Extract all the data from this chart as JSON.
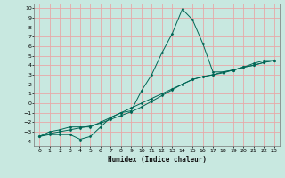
{
  "xlabel": "Humidex (Indice chaleur)",
  "xlim": [
    -0.5,
    23.5
  ],
  "ylim": [
    -4.5,
    10.5
  ],
  "xticks": [
    0,
    1,
    2,
    3,
    4,
    5,
    6,
    7,
    8,
    9,
    10,
    11,
    12,
    13,
    14,
    15,
    16,
    17,
    18,
    19,
    20,
    21,
    22,
    23
  ],
  "yticks": [
    -4,
    -3,
    -2,
    -1,
    0,
    1,
    2,
    3,
    4,
    5,
    6,
    7,
    8,
    9,
    10
  ],
  "bg_color": "#c8e8e0",
  "grid_color": "#e8a8a8",
  "line_color": "#006655",
  "curve1_x": [
    0,
    1,
    2,
    3,
    4,
    5,
    6,
    7,
    8,
    9,
    10,
    11,
    12,
    13,
    14,
    15,
    16,
    17,
    18,
    19,
    20,
    21,
    22,
    23
  ],
  "curve1_y": [
    -3.5,
    -3.3,
    -3.3,
    -3.3,
    -3.8,
    -3.5,
    -2.5,
    -1.5,
    -1.0,
    -0.8,
    1.3,
    3.0,
    5.3,
    7.3,
    9.9,
    8.8,
    6.3,
    3.3,
    3.3,
    3.5,
    3.8,
    4.2,
    4.5,
    4.5
  ],
  "curve2_x": [
    0,
    1,
    2,
    3,
    4,
    5,
    6,
    7,
    8,
    9,
    10,
    11,
    12,
    13,
    14,
    15,
    16,
    17,
    18,
    19,
    20,
    21,
    22,
    23
  ],
  "curve2_y": [
    -3.5,
    -3.0,
    -2.8,
    -2.5,
    -2.5,
    -2.5,
    -2.0,
    -1.5,
    -1.0,
    -0.5,
    0.0,
    0.5,
    1.0,
    1.5,
    2.0,
    2.5,
    2.8,
    3.0,
    3.2,
    3.5,
    3.8,
    4.0,
    4.3,
    4.5
  ],
  "curve3_x": [
    0,
    1,
    2,
    3,
    4,
    5,
    6,
    7,
    8,
    9,
    10,
    11,
    12,
    13,
    14,
    15,
    16,
    17,
    18,
    19,
    20,
    21,
    22,
    23
  ],
  "curve3_y": [
    -3.5,
    -3.2,
    -3.0,
    -2.8,
    -2.6,
    -2.4,
    -2.1,
    -1.7,
    -1.3,
    -0.9,
    -0.4,
    0.2,
    0.8,
    1.4,
    2.0,
    2.5,
    2.8,
    3.0,
    3.3,
    3.5,
    3.8,
    4.0,
    4.3,
    4.5
  ]
}
